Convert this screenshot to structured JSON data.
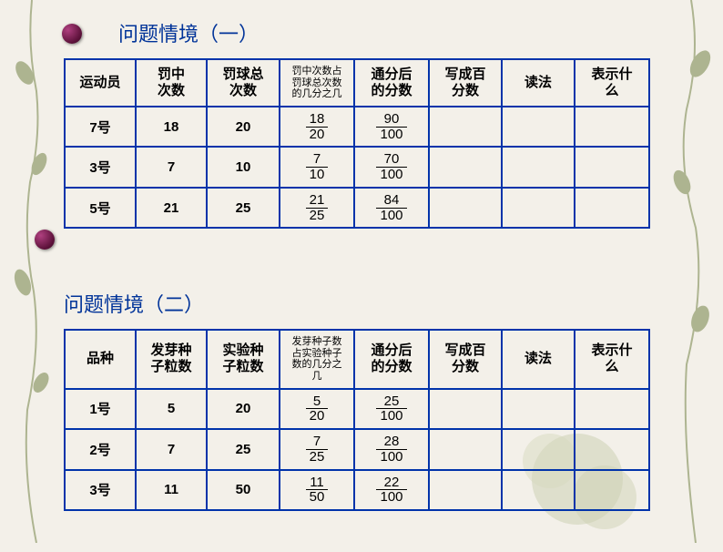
{
  "section1": {
    "title": "问题情境（一）",
    "headers": [
      "运动员",
      "罚中\n次数",
      "罚球总\n次数",
      "罚中次数占\n罚球总次数\n的几分之几",
      "通分后\n的分数",
      "写成百\n分数",
      "读法",
      "表示什\n么"
    ],
    "rows": [
      {
        "label": "7号",
        "a": "18",
        "b": "20",
        "frac1_n": "18",
        "frac1_d": "20",
        "frac2_n": "90",
        "frac2_d": "100"
      },
      {
        "label": "3号",
        "a": "7",
        "b": "10",
        "frac1_n": "7",
        "frac1_d": "10",
        "frac2_n": "70",
        "frac2_d": "100"
      },
      {
        "label": "5号",
        "a": "21",
        "b": "25",
        "frac1_n": "21",
        "frac1_d": "25",
        "frac2_n": "84",
        "frac2_d": "100"
      }
    ]
  },
  "section2": {
    "title": "问题情境（二）",
    "headers": [
      "品种",
      "发芽种\n子粒数",
      "实验种\n子粒数",
      "发芽种子数\n占实验种子\n数的几分之\n几",
      "通分后\n的分数",
      "写成百\n分数",
      "读法",
      "表示什\n么"
    ],
    "rows": [
      {
        "label": "1号",
        "a": "5",
        "b": "20",
        "frac1_n": "5",
        "frac1_d": "20",
        "frac2_n": "25",
        "frac2_d": "100"
      },
      {
        "label": "2号",
        "a": "7",
        "b": "25",
        "frac1_n": "7",
        "frac1_d": "25",
        "frac2_n": "28",
        "frac2_d": "100"
      },
      {
        "label": "3号",
        "a": "11",
        "b": "50",
        "frac1_n": "11",
        "frac1_d": "50",
        "frac2_n": "22",
        "frac2_d": "100"
      }
    ]
  },
  "colors": {
    "border": "#0033aa",
    "heading": "#003399",
    "bg": "#f3f0e9"
  }
}
